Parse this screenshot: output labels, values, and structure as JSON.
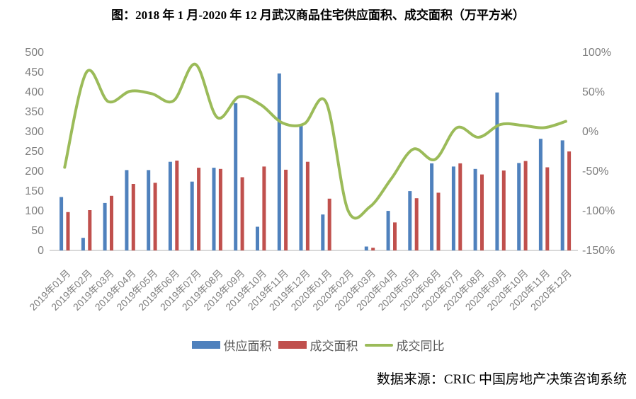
{
  "figure": {
    "title": "图：2018 年 1 月-2020 年 12 月武汉商品住宅供应面积、成交面积（万平方米）",
    "source": "数据来源：CRIC 中国房地产决策咨询系统"
  },
  "legend": [
    {
      "key": "supply",
      "label": "供应面积"
    },
    {
      "key": "transaction",
      "label": "成交面积"
    },
    {
      "key": "yoy",
      "label": "成交同比"
    }
  ],
  "colors": {
    "supply": "#4F81BD",
    "transaction": "#C0504D",
    "yoy": "#9BBB59",
    "axis_line": "#D9D9D9",
    "tick_text": "#7F7F7F"
  },
  "chart_data": {
    "type": "bar",
    "combo": "bar+line",
    "title": "图：2018 年 1 月-2020 年 12 月武汉商品住宅供应面积、成交面积（万平方米）",
    "categories": [
      "2019年01月",
      "2019年02月",
      "2019年03月",
      "2019年04月",
      "2019年05月",
      "2019年06月",
      "2019年07月",
      "2019年08月",
      "2019年09月",
      "2019年10月",
      "2019年11月",
      "2019年12月",
      "2020年01月",
      "2020年02月",
      "2020年03月",
      "2020年04月",
      "2020年05月",
      "2020年06月",
      "2020年07月",
      "2020年08月",
      "2020年09月",
      "2020年10月",
      "2020年11月",
      "2020年12月"
    ],
    "series": [
      {
        "name": "供应面积",
        "type": "bar",
        "axis": "left",
        "values": [
          133,
          30,
          118,
          201,
          201,
          222,
          172,
          207,
          370,
          58,
          445,
          315,
          89,
          0,
          8,
          98,
          148,
          218,
          210,
          204,
          397,
          219,
          280,
          276
        ]
      },
      {
        "name": "成交面积",
        "type": "bar",
        "axis": "left",
        "values": [
          95,
          100,
          136,
          166,
          169,
          225,
          207,
          204,
          183,
          210,
          202,
          222,
          129,
          0,
          5,
          69,
          130,
          144,
          218,
          190,
          200,
          224,
          208,
          248
        ]
      },
      {
        "name": "成交同比",
        "type": "line",
        "axis": "right",
        "unit": "%",
        "values": [
          -46,
          74,
          37,
          50,
          47,
          38,
          84,
          17,
          43,
          33,
          10,
          9,
          36,
          -100,
          -96,
          -60,
          -23,
          -36,
          4,
          -8,
          8,
          7,
          4,
          12
        ]
      }
    ],
    "left_axis": {
      "min": 0,
      "max": 500,
      "step": 50
    },
    "right_axis": {
      "min": -150,
      "max": 100,
      "step": 50,
      "unit": "%"
    },
    "grid": false,
    "legend_position": "bottom"
  }
}
